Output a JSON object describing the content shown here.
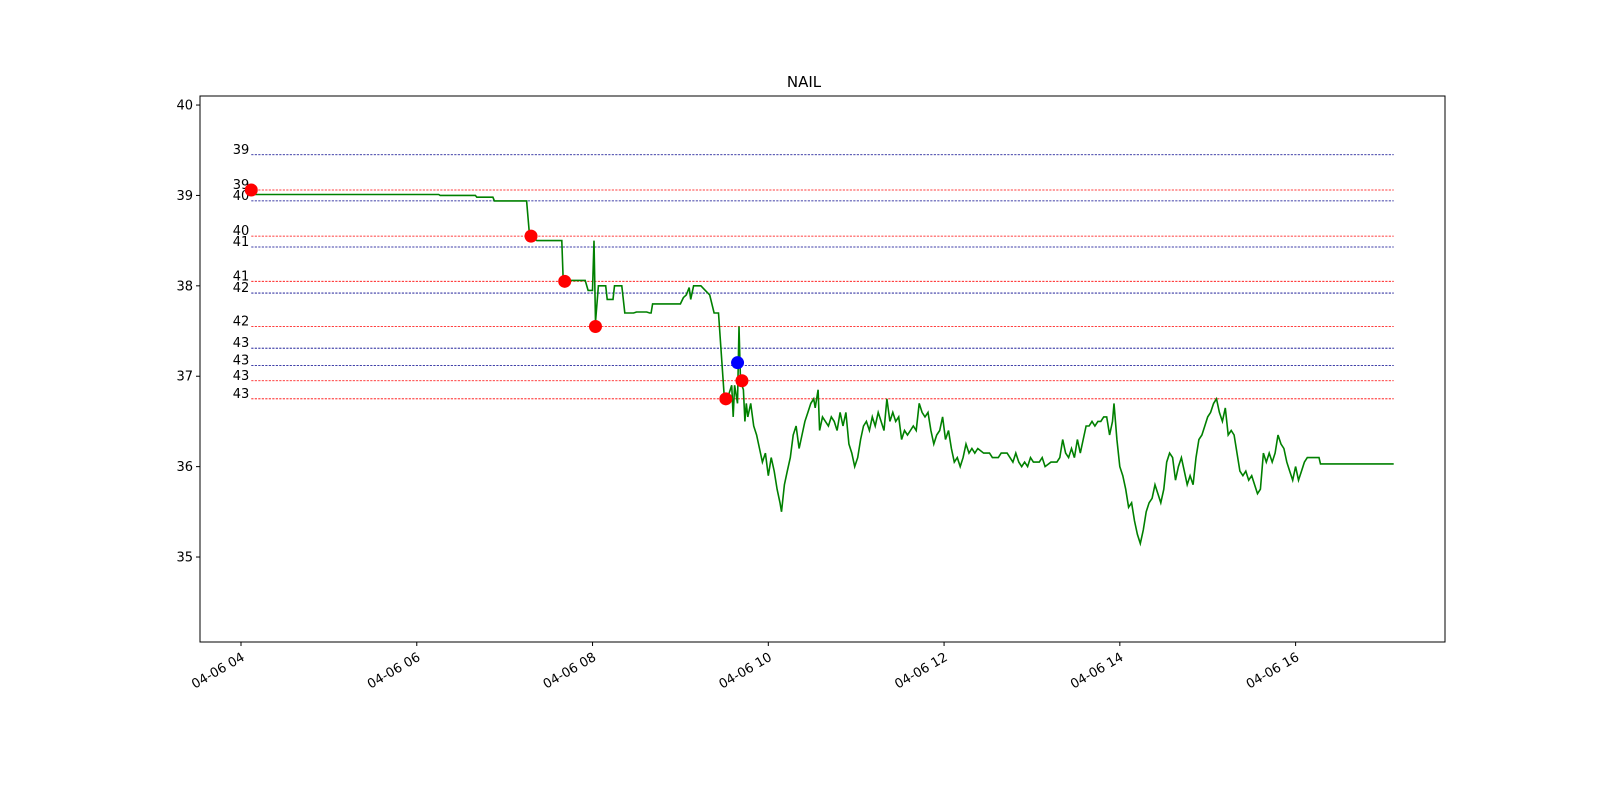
{
  "chart_data": {
    "type": "line",
    "title": "NAIL",
    "xlabel": "",
    "ylabel": "",
    "x_axis": {
      "kind": "datetime",
      "range": [
        "04-06 03:32",
        "04-06 17:42"
      ],
      "tick_labels": [
        "04-06 04",
        "04-06 06",
        "04-06 08",
        "04-06 10",
        "04-06 12",
        "04-06 14",
        "04-06 16"
      ],
      "tick_hours": [
        4,
        6,
        8,
        10,
        12,
        14,
        16
      ]
    },
    "y_axis": {
      "range": [
        34.06,
        40.1
      ],
      "ticks": [
        35,
        36,
        37,
        38,
        39,
        40
      ]
    },
    "grid": false,
    "legend": "none",
    "colors": {
      "price_line": "#008000",
      "sell_marker": "#ff0000",
      "buy_marker": "#0000ff",
      "red_level": "#ff0000",
      "blue_level": "#00008b"
    },
    "price_series": [
      [
        "04:07",
        39.01
      ],
      [
        "06:15",
        39.01
      ],
      [
        "06:16",
        39.0
      ],
      [
        "06:40",
        39.0
      ],
      [
        "06:41",
        38.98
      ],
      [
        "06:52",
        38.98
      ],
      [
        "06:53",
        38.94
      ],
      [
        "07:15",
        38.94
      ],
      [
        "07:17",
        38.55
      ],
      [
        "07:22",
        38.5
      ],
      [
        "07:39",
        38.5
      ],
      [
        "07:40",
        38.06
      ],
      [
        "07:55",
        38.06
      ],
      [
        "07:57",
        37.95
      ],
      [
        "08:00",
        37.95
      ],
      [
        "08:01",
        38.5
      ],
      [
        "08:02",
        37.6
      ],
      [
        "08:04",
        38.0
      ],
      [
        "08:09",
        38.0
      ],
      [
        "08:10",
        37.85
      ],
      [
        "08:14",
        37.85
      ],
      [
        "08:15",
        38.0
      ],
      [
        "08:20",
        38.0
      ],
      [
        "08:22",
        37.7
      ],
      [
        "08:28",
        37.7
      ],
      [
        "08:30",
        37.71
      ],
      [
        "08:37",
        37.71
      ],
      [
        "08:39",
        37.7
      ],
      [
        "08:40",
        37.7
      ],
      [
        "08:41",
        37.8
      ],
      [
        "09:00",
        37.8
      ],
      [
        "09:02",
        37.87
      ],
      [
        "09:04",
        37.9
      ],
      [
        "09:06",
        37.98
      ],
      [
        "09:07",
        37.85
      ],
      [
        "09:09",
        38.0
      ],
      [
        "09:14",
        38.0
      ],
      [
        "09:17",
        37.95
      ],
      [
        "09:20",
        37.9
      ],
      [
        "09:23",
        37.7
      ],
      [
        "09:26",
        37.7
      ],
      [
        "09:30",
        36.75
      ],
      [
        "09:33",
        36.8
      ],
      [
        "09:35",
        36.9
      ],
      [
        "09:36",
        36.55
      ],
      [
        "09:37",
        36.9
      ],
      [
        "09:39",
        36.7
      ],
      [
        "09:40",
        37.55
      ],
      [
        "09:41",
        36.95
      ],
      [
        "09:43",
        36.85
      ],
      [
        "09:44",
        36.5
      ],
      [
        "09:45",
        36.7
      ],
      [
        "09:46",
        36.55
      ],
      [
        "09:48",
        36.7
      ],
      [
        "09:50",
        36.45
      ],
      [
        "09:52",
        36.35
      ],
      [
        "09:54",
        36.2
      ],
      [
        "09:56",
        36.05
      ],
      [
        "09:58",
        36.15
      ],
      [
        "10:00",
        35.9
      ],
      [
        "10:02",
        36.1
      ],
      [
        "10:04",
        35.95
      ],
      [
        "10:06",
        35.75
      ],
      [
        "10:08",
        35.6
      ],
      [
        "10:09",
        35.5
      ],
      [
        "10:11",
        35.8
      ],
      [
        "10:13",
        35.95
      ],
      [
        "10:15",
        36.1
      ],
      [
        "10:17",
        36.35
      ],
      [
        "10:19",
        36.45
      ],
      [
        "10:21",
        36.2
      ],
      [
        "10:23",
        36.35
      ],
      [
        "10:25",
        36.5
      ],
      [
        "10:27",
        36.6
      ],
      [
        "10:29",
        36.7
      ],
      [
        "10:31",
        36.75
      ],
      [
        "10:32",
        36.65
      ],
      [
        "10:34",
        36.85
      ],
      [
        "10:35",
        36.4
      ],
      [
        "10:37",
        36.55
      ],
      [
        "10:39",
        36.5
      ],
      [
        "10:41",
        36.45
      ],
      [
        "10:43",
        36.55
      ],
      [
        "10:45",
        36.5
      ],
      [
        "10:47",
        36.4
      ],
      [
        "10:49",
        36.6
      ],
      [
        "10:51",
        36.45
      ],
      [
        "10:53",
        36.6
      ],
      [
        "10:55",
        36.25
      ],
      [
        "10:57",
        36.15
      ],
      [
        "10:59",
        36.0
      ],
      [
        "11:01",
        36.1
      ],
      [
        "11:03",
        36.3
      ],
      [
        "11:05",
        36.45
      ],
      [
        "11:07",
        36.5
      ],
      [
        "11:09",
        36.4
      ],
      [
        "11:11",
        36.55
      ],
      [
        "11:13",
        36.45
      ],
      [
        "11:15",
        36.6
      ],
      [
        "11:17",
        36.5
      ],
      [
        "11:19",
        36.4
      ],
      [
        "11:21",
        36.75
      ],
      [
        "11:23",
        36.5
      ],
      [
        "11:25",
        36.6
      ],
      [
        "11:27",
        36.5
      ],
      [
        "11:29",
        36.55
      ],
      [
        "11:31",
        36.3
      ],
      [
        "11:33",
        36.4
      ],
      [
        "11:35",
        36.35
      ],
      [
        "11:37",
        36.4
      ],
      [
        "11:39",
        36.45
      ],
      [
        "11:41",
        36.4
      ],
      [
        "11:43",
        36.7
      ],
      [
        "11:45",
        36.6
      ],
      [
        "11:47",
        36.55
      ],
      [
        "11:49",
        36.6
      ],
      [
        "11:51",
        36.4
      ],
      [
        "11:53",
        36.25
      ],
      [
        "11:55",
        36.35
      ],
      [
        "11:57",
        36.4
      ],
      [
        "11:59",
        36.55
      ],
      [
        "12:01",
        36.3
      ],
      [
        "12:03",
        36.4
      ],
      [
        "12:05",
        36.2
      ],
      [
        "12:07",
        36.05
      ],
      [
        "12:09",
        36.1
      ],
      [
        "12:11",
        36.0
      ],
      [
        "12:13",
        36.1
      ],
      [
        "12:15",
        36.25
      ],
      [
        "12:17",
        36.15
      ],
      [
        "12:19",
        36.2
      ],
      [
        "12:21",
        36.15
      ],
      [
        "12:23",
        36.2
      ],
      [
        "12:27",
        36.15
      ],
      [
        "12:31",
        36.15
      ],
      [
        "12:33",
        36.1
      ],
      [
        "12:37",
        36.1
      ],
      [
        "12:39",
        36.15
      ],
      [
        "12:43",
        36.15
      ],
      [
        "12:45",
        36.1
      ],
      [
        "12:47",
        36.05
      ],
      [
        "12:49",
        36.15
      ],
      [
        "12:51",
        36.05
      ],
      [
        "12:53",
        36.0
      ],
      [
        "12:55",
        36.05
      ],
      [
        "12:57",
        36.0
      ],
      [
        "12:59",
        36.1
      ],
      [
        "13:01",
        36.05
      ],
      [
        "13:05",
        36.05
      ],
      [
        "13:07",
        36.1
      ],
      [
        "13:09",
        36.0
      ],
      [
        "13:13",
        36.05
      ],
      [
        "13:17",
        36.05
      ],
      [
        "13:19",
        36.1
      ],
      [
        "13:21",
        36.3
      ],
      [
        "13:23",
        36.15
      ],
      [
        "13:25",
        36.1
      ],
      [
        "13:27",
        36.2
      ],
      [
        "13:29",
        36.1
      ],
      [
        "13:31",
        36.3
      ],
      [
        "13:33",
        36.15
      ],
      [
        "13:35",
        36.3
      ],
      [
        "13:37",
        36.45
      ],
      [
        "13:39",
        36.45
      ],
      [
        "13:41",
        36.5
      ],
      [
        "13:43",
        36.45
      ],
      [
        "13:45",
        36.5
      ],
      [
        "13:47",
        36.5
      ],
      [
        "13:49",
        36.55
      ],
      [
        "13:51",
        36.55
      ],
      [
        "13:53",
        36.35
      ],
      [
        "13:55",
        36.5
      ],
      [
        "13:56",
        36.7
      ],
      [
        "13:58",
        36.3
      ],
      [
        "14:00",
        36.0
      ],
      [
        "14:02",
        35.9
      ],
      [
        "14:04",
        35.75
      ],
      [
        "14:06",
        35.55
      ],
      [
        "14:08",
        35.6
      ],
      [
        "14:10",
        35.4
      ],
      [
        "14:12",
        35.25
      ],
      [
        "14:14",
        35.15
      ],
      [
        "14:16",
        35.3
      ],
      [
        "14:18",
        35.5
      ],
      [
        "14:20",
        35.6
      ],
      [
        "14:22",
        35.65
      ],
      [
        "14:24",
        35.8
      ],
      [
        "14:26",
        35.7
      ],
      [
        "14:28",
        35.6
      ],
      [
        "14:30",
        35.75
      ],
      [
        "14:32",
        36.05
      ],
      [
        "14:34",
        36.15
      ],
      [
        "14:36",
        36.1
      ],
      [
        "14:38",
        35.85
      ],
      [
        "14:40",
        36.0
      ],
      [
        "14:42",
        36.1
      ],
      [
        "14:44",
        35.95
      ],
      [
        "14:46",
        35.8
      ],
      [
        "14:48",
        35.9
      ],
      [
        "14:50",
        35.8
      ],
      [
        "14:52",
        36.1
      ],
      [
        "14:54",
        36.3
      ],
      [
        "14:56",
        36.35
      ],
      [
        "14:58",
        36.45
      ],
      [
        "15:00",
        36.55
      ],
      [
        "15:02",
        36.6
      ],
      [
        "15:04",
        36.7
      ],
      [
        "15:06",
        36.75
      ],
      [
        "15:08",
        36.6
      ],
      [
        "15:10",
        36.5
      ],
      [
        "15:12",
        36.65
      ],
      [
        "15:14",
        36.35
      ],
      [
        "15:16",
        36.4
      ],
      [
        "15:18",
        36.35
      ],
      [
        "15:20",
        36.15
      ],
      [
        "15:22",
        35.95
      ],
      [
        "15:24",
        35.9
      ],
      [
        "15:26",
        35.95
      ],
      [
        "15:28",
        35.85
      ],
      [
        "15:30",
        35.9
      ],
      [
        "15:32",
        35.8
      ],
      [
        "15:34",
        35.7
      ],
      [
        "15:36",
        35.75
      ],
      [
        "15:38",
        36.15
      ],
      [
        "15:40",
        36.05
      ],
      [
        "15:42",
        36.15
      ],
      [
        "15:44",
        36.05
      ],
      [
        "15:46",
        36.15
      ],
      [
        "15:48",
        36.35
      ],
      [
        "15:50",
        36.25
      ],
      [
        "15:52",
        36.2
      ],
      [
        "15:54",
        36.05
      ],
      [
        "15:56",
        35.95
      ],
      [
        "15:58",
        35.85
      ],
      [
        "16:00",
        36.0
      ],
      [
        "16:02",
        35.85
      ],
      [
        "16:04",
        35.95
      ],
      [
        "16:06",
        36.05
      ],
      [
        "16:08",
        36.1
      ],
      [
        "16:10",
        36.1
      ],
      [
        "16:16",
        36.1
      ],
      [
        "16:17",
        36.03
      ],
      [
        "17:07",
        36.03
      ]
    ],
    "markers": [
      {
        "kind": "sell",
        "time": "04:07",
        "price": 39.06
      },
      {
        "kind": "sell",
        "time": "07:18",
        "price": 38.55
      },
      {
        "kind": "sell",
        "time": "07:41",
        "price": 38.05
      },
      {
        "kind": "sell",
        "time": "08:02",
        "price": 37.55
      },
      {
        "kind": "sell",
        "time": "09:31",
        "price": 36.75
      },
      {
        "kind": "sell",
        "time": "09:42",
        "price": 36.95
      },
      {
        "kind": "buy",
        "time": "09:39",
        "price": 37.15
      }
    ],
    "levels": {
      "start_time": "04:07",
      "end_time": "17:07",
      "lines": [
        {
          "label": "39",
          "price": 39.45,
          "color_key": "blue_level"
        },
        {
          "label": "39",
          "price": 39.06,
          "color_key": "red_level"
        },
        {
          "label": "40",
          "price": 38.94,
          "color_key": "blue_level"
        },
        {
          "label": "40",
          "price": 38.55,
          "color_key": "red_level"
        },
        {
          "label": "41",
          "price": 38.43,
          "color_key": "blue_level"
        },
        {
          "label": "41",
          "price": 38.05,
          "color_key": "red_level"
        },
        {
          "label": "42",
          "price": 37.92,
          "color_key": "blue_level"
        },
        {
          "label": "42",
          "price": 37.55,
          "color_key": "red_level"
        },
        {
          "label": "43",
          "price": 37.31,
          "color_key": "blue_level"
        },
        {
          "label": "43",
          "price": 37.12,
          "color_key": "blue_level"
        },
        {
          "label": "43",
          "price": 36.95,
          "color_key": "red_level"
        },
        {
          "label": "43",
          "price": 36.75,
          "color_key": "red_level"
        }
      ]
    }
  }
}
